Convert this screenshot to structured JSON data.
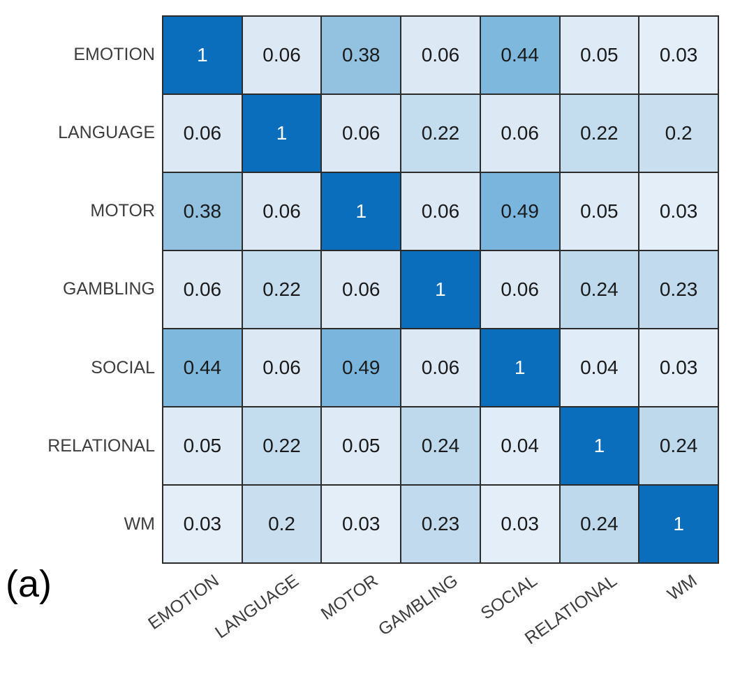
{
  "figure_label": "(a)",
  "chart_data": {
    "type": "heatmap",
    "title": "",
    "xlabel": "",
    "ylabel": "",
    "categories": [
      "EMOTION",
      "LANGUAGE",
      "MOTOR",
      "GAMBLING",
      "SOCIAL",
      "RELATIONAL",
      "WM"
    ],
    "matrix": [
      [
        1,
        0.06,
        0.38,
        0.06,
        0.44,
        0.05,
        0.03
      ],
      [
        0.06,
        1,
        0.06,
        0.22,
        0.06,
        0.22,
        0.2
      ],
      [
        0.38,
        0.06,
        1,
        0.06,
        0.49,
        0.05,
        0.03
      ],
      [
        0.06,
        0.22,
        0.06,
        1,
        0.06,
        0.24,
        0.23
      ],
      [
        0.44,
        0.06,
        0.49,
        0.06,
        1,
        0.04,
        0.03
      ],
      [
        0.05,
        0.22,
        0.05,
        0.24,
        0.04,
        1,
        0.24
      ],
      [
        0.03,
        0.2,
        0.03,
        0.23,
        0.03,
        0.24,
        1
      ]
    ],
    "colormap": "Blues",
    "value_colors": {
      "1": "#0a6ebd",
      "0.49": "#79b5dc",
      "0.44": "#7eb8dd",
      "0.38": "#92c2e0",
      "0.24": "#bed9ec",
      "0.23": "#c1daed",
      "0.22": "#c3dcee",
      "0.2": "#c9dfef",
      "0.06": "#dce9f5",
      "0.05": "#deebf6",
      "0.04": "#e0ecf7",
      "0.03": "#e3eef8"
    },
    "cell_text_color": "#1a1a1a",
    "diagonal_text_color": "#ffffff",
    "grid_line_color": "#2b2b2b",
    "x_tick_rotation_deg": -35,
    "legend_position": "none",
    "grid": true
  }
}
